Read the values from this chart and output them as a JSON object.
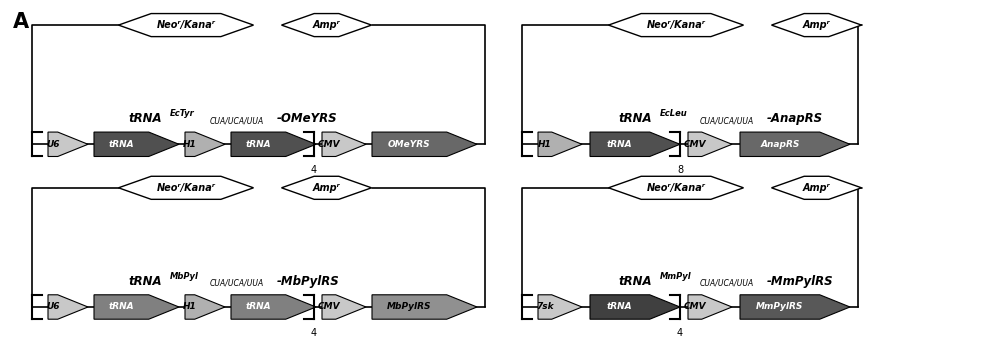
{
  "fig_width": 10.0,
  "fig_height": 3.39,
  "bg_color": "#ffffff",
  "panels": [
    {
      "id": "top_left",
      "ox": 0.02,
      "oy": 0.5,
      "pw": 0.47,
      "ph": 0.48,
      "neo_kana_label": "Neoʳ/Kanaʳ",
      "amp_label": "Ampʳ",
      "title_main": "tRNA",
      "title_super": "EcTyr",
      "title_sub": "CUA/UCA/UUA",
      "title_gene": "-OMeYRS",
      "elements": [
        "U6",
        "tRNA",
        "H1",
        "tRNA",
        "CMV",
        "OMeYRS"
      ],
      "elem_colors": [
        "#c8c8c8",
        "#505050",
        "#b0b0b0",
        "#505050",
        "#c8c8c8",
        "#686868"
      ],
      "bracket_num": "4"
    },
    {
      "id": "top_right",
      "ox": 0.51,
      "oy": 0.5,
      "pw": 0.47,
      "ph": 0.48,
      "neo_kana_label": "Neoʳ/Kanaʳ",
      "amp_label": "Ampʳ",
      "title_main": "tRNA",
      "title_super": "EcLeu",
      "title_sub": "CUA/UCA/UUA",
      "title_gene": "-AnapRS",
      "elements": [
        "H1",
        "tRNA",
        "CMV",
        "AnapRS"
      ],
      "elem_colors": [
        "#b0b0b0",
        "#505050",
        "#c8c8c8",
        "#686868"
      ],
      "bracket_num": "8"
    },
    {
      "id": "bottom_left",
      "ox": 0.02,
      "oy": 0.02,
      "pw": 0.47,
      "ph": 0.48,
      "neo_kana_label": "Neoʳ/Kanaʳ",
      "amp_label": "Ampʳ",
      "title_main": "tRNA",
      "title_super": "MbPyl",
      "title_sub": "CUA/UCA/UUA",
      "title_gene": "-MbPylRS",
      "elements": [
        "U6",
        "tRNA",
        "H1",
        "tRNA",
        "CMV",
        "MbPylRS"
      ],
      "elem_colors": [
        "#c8c8c8",
        "#808080",
        "#b0b0b0",
        "#808080",
        "#c8c8c8",
        "#909090"
      ],
      "bracket_num": "4"
    },
    {
      "id": "bottom_right",
      "ox": 0.51,
      "oy": 0.02,
      "pw": 0.47,
      "ph": 0.48,
      "neo_kana_label": "Neoʳ/Kanaʳ",
      "amp_label": "Ampʳ",
      "title_main": "tRNA",
      "title_super": "MmPyl",
      "title_sub": "CUA/UCA/UUA",
      "title_gene": "-MmPylRS",
      "elements": [
        "7sk",
        "tRNA",
        "CMV",
        "MmPylRS"
      ],
      "elem_colors": [
        "#c8c8c8",
        "#404040",
        "#c8c8c8",
        "#585858"
      ],
      "bracket_num": "4"
    }
  ]
}
